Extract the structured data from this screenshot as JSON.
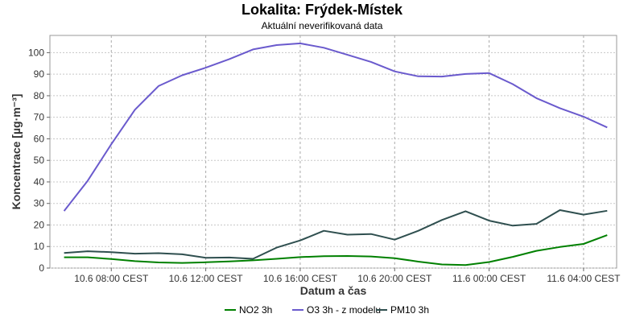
{
  "chart_data": {
    "type": "line",
    "title": "Lokalita: Frýdek-Místek",
    "subtitle": "Aktuální neverifikovaná data",
    "xlabel": "Datum a čas",
    "ylabel": "Koncentrace [µg·m⁻³]",
    "ylim": [
      0,
      108
    ],
    "yticks": [
      0,
      10,
      20,
      30,
      40,
      50,
      60,
      70,
      80,
      90,
      100
    ],
    "xlim": [
      5.4,
      29.4
    ],
    "x_unit": "hours since 10.6 00:00 CEST",
    "xticks": [
      {
        "x": 8,
        "label": "10.6 08:00 CEST"
      },
      {
        "x": 12,
        "label": "10.6 12:00 CEST"
      },
      {
        "x": 16,
        "label": "10.6 16:00 CEST"
      },
      {
        "x": 20,
        "label": "10.6 20:00 CEST"
      },
      {
        "x": 24,
        "label": "11.6 00:00 CEST"
      },
      {
        "x": 28,
        "label": "11.6 04:00 CEST"
      }
    ],
    "grid": true,
    "legend_position": "bottom",
    "x": [
      6,
      7,
      8,
      9,
      10,
      11,
      12,
      13,
      14,
      15,
      16,
      17,
      18,
      19,
      20,
      21,
      22,
      23,
      24,
      25,
      26,
      27,
      28,
      29
    ],
    "series": [
      {
        "name": "NO2 3h",
        "color": "#008000",
        "values": [
          5.0,
          5.0,
          4.2,
          3.2,
          2.6,
          2.4,
          2.7,
          3.1,
          3.6,
          4.3,
          5.1,
          5.5,
          5.6,
          5.4,
          4.6,
          3.0,
          1.7,
          1.4,
          2.8,
          5.2,
          8.0,
          9.8,
          11.2,
          15.3
        ]
      },
      {
        "name": "O3 3h - z modelu",
        "color": "#6a5acd",
        "values": [
          26.5,
          40.5,
          57.5,
          73.5,
          84.5,
          89.5,
          93.0,
          97.0,
          101.5,
          103.5,
          104.3,
          102.3,
          99.0,
          95.7,
          91.3,
          89.0,
          88.9,
          90.1,
          90.5,
          85.4,
          78.9,
          74.2,
          70.3,
          65.3
        ]
      },
      {
        "name": "PM10 3h",
        "color": "#2f4f4f",
        "values": [
          7.0,
          7.8,
          7.4,
          6.7,
          6.9,
          6.4,
          4.8,
          4.9,
          4.3,
          9.5,
          12.8,
          17.3,
          15.5,
          15.8,
          13.2,
          17.3,
          22.3,
          26.4,
          22.0,
          19.7,
          20.5,
          26.9,
          24.8,
          26.6
        ]
      }
    ]
  }
}
